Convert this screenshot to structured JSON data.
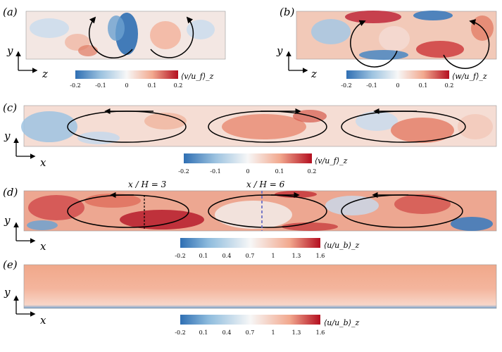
{
  "panels": [
    {
      "id": "a",
      "label": "(a)",
      "y_axis": "y",
      "x_axis": "z"
    },
    {
      "id": "b",
      "label": "(b)",
      "y_axis": "y",
      "x_axis": "z"
    },
    {
      "id": "c",
      "label": "(c)",
      "y_axis": "y",
      "x_axis": "x"
    },
    {
      "id": "d",
      "label": "(d)",
      "y_axis": "y",
      "x_axis": "x"
    },
    {
      "id": "e",
      "label": "(e)",
      "y_axis": "y",
      "x_axis": "x"
    }
  ],
  "annotations": {
    "d_line1": "x / H = 3",
    "d_line2": "x / H = 6"
  },
  "colorbars": [
    {
      "id": "a",
      "ticks": [
        "-0.2",
        "-0.1",
        "0",
        "0.1",
        "0.2"
      ],
      "label": "⟨v/u_f⟩_z"
    },
    {
      "id": "b",
      "ticks": [
        "-0.2",
        "-0.1",
        "0",
        "0.1",
        "0.2"
      ],
      "label": "⟨w/u_f⟩_z"
    },
    {
      "id": "c",
      "ticks": [
        "-0.2",
        "-0.1",
        "0",
        "0.1",
        "0.2"
      ],
      "label": "⟨v/u_f⟩_z"
    },
    {
      "id": "d",
      "ticks": [
        "-0.2",
        "0.1",
        "0.4",
        "0.7",
        "1",
        "1.3",
        "1.6"
      ],
      "label": "⟨u/u_b⟩_z"
    },
    {
      "id": "e",
      "ticks": [
        "-0.2",
        "0.1",
        "0.4",
        "0.7",
        "1",
        "1.3",
        "1.6"
      ],
      "label": "⟨u/u_b⟩_z"
    }
  ],
  "colors": {
    "blue": "#2f6fb3",
    "white": "#f7f7f7",
    "red": "#b40f20",
    "light_red": "#eaa38d"
  }
}
